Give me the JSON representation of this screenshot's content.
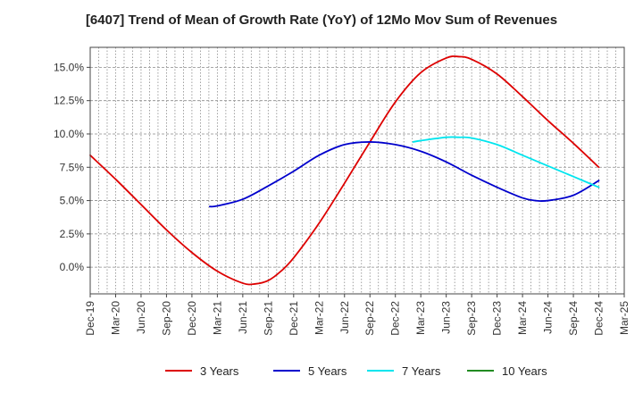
{
  "chart_data": {
    "type": "line",
    "title": "[6407]  Trend of Mean of Growth Rate (YoY) of 12Mo Mov Sum of Revenues",
    "xlabel": "",
    "ylabel": "",
    "ylim": [
      -2.0,
      16.5
    ],
    "yticks": [
      0.0,
      2.5,
      5.0,
      7.5,
      10.0,
      12.5,
      15.0
    ],
    "ytick_labels": [
      "0.0%",
      "2.5%",
      "5.0%",
      "7.5%",
      "10.0%",
      "12.5%",
      "15.0%"
    ],
    "x_tick_labels": [
      "Dec-19",
      "Mar-20",
      "Jun-20",
      "Sep-20",
      "Dec-20",
      "Mar-21",
      "Jun-21",
      "Sep-21",
      "Dec-21",
      "Mar-22",
      "Jun-22",
      "Sep-22",
      "Dec-22",
      "Mar-23",
      "Jun-23",
      "Sep-23",
      "Dec-23",
      "Mar-24",
      "Jun-24",
      "Sep-24",
      "Dec-24",
      "Mar-25"
    ],
    "x_range_quarters": [
      0,
      21
    ],
    "grid": true,
    "legend_position": "bottom",
    "series": [
      {
        "name": "3 Years",
        "color": "#dd0000",
        "x": [
          0,
          1,
          2,
          3,
          4,
          5,
          6,
          6.5,
          7,
          7.5,
          8,
          9,
          10,
          11,
          12,
          13,
          14,
          14.5,
          15,
          16,
          17,
          18,
          19,
          20
        ],
        "values": [
          8.4,
          6.6,
          4.7,
          2.8,
          1.1,
          -0.3,
          -1.2,
          -1.25,
          -1.0,
          -0.3,
          0.7,
          3.3,
          6.3,
          9.4,
          12.4,
          14.6,
          15.7,
          15.8,
          15.6,
          14.5,
          12.8,
          11.0,
          9.3,
          7.5
        ]
      },
      {
        "name": "5 Years",
        "color": "#0000cc",
        "x": [
          4.7,
          5,
          6,
          7,
          8,
          9,
          10,
          11,
          12,
          13,
          14,
          15,
          16,
          17,
          17.5,
          18,
          19,
          20
        ],
        "values": [
          4.55,
          4.6,
          5.1,
          6.1,
          7.2,
          8.4,
          9.2,
          9.4,
          9.2,
          8.7,
          7.9,
          6.9,
          6.0,
          5.2,
          5.0,
          5.0,
          5.4,
          6.5
        ]
      },
      {
        "name": "7 Years",
        "color": "#00e5ee",
        "x": [
          12.7,
          13,
          14,
          14.5,
          15,
          16,
          17,
          18,
          19,
          20
        ],
        "values": [
          9.4,
          9.5,
          9.75,
          9.75,
          9.7,
          9.2,
          8.4,
          7.6,
          6.8,
          6.0
        ]
      },
      {
        "name": "10 Years",
        "color": "#228b22",
        "x": [],
        "values": []
      }
    ]
  }
}
